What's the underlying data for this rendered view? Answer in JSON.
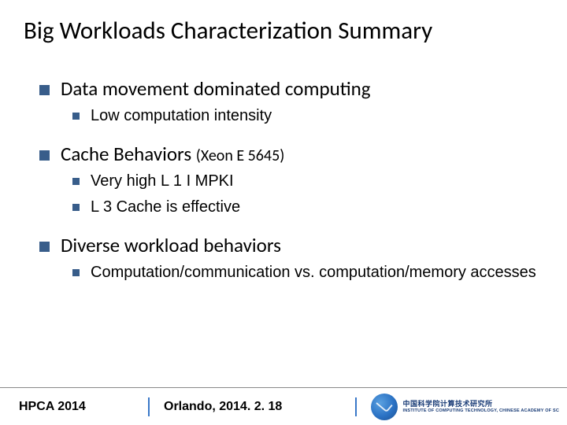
{
  "title": "Big Workloads Characterization Summary",
  "colors": {
    "bullet": "#385d8a",
    "separator": "#3a78c8",
    "footer_border": "#888888",
    "text": "#000000",
    "background": "#ffffff"
  },
  "items": [
    {
      "text": "Data movement dominated computing",
      "sub": [
        {
          "text": "Low computation intensity"
        }
      ]
    },
    {
      "text": "Cache Behaviors",
      "paren": "(Xeon E 5645)",
      "sub": [
        {
          "text": "Very high L 1 I MPKI"
        },
        {
          "text": "L 3 Cache is effective"
        }
      ]
    },
    {
      "text": "Diverse workload behaviors",
      "sub": [
        {
          "text": "Computation/communication vs. computation/memory accesses"
        }
      ]
    }
  ],
  "footer": {
    "venue": "HPCA  2014",
    "location": "Orlando, 2014. 2. 18",
    "logo": {
      "line1": "中国科学院计算技术研究所",
      "line2": "INSTITUTE OF COMPUTING TECHNOLOGY, CHINESE ACADEMY OF SC"
    }
  }
}
